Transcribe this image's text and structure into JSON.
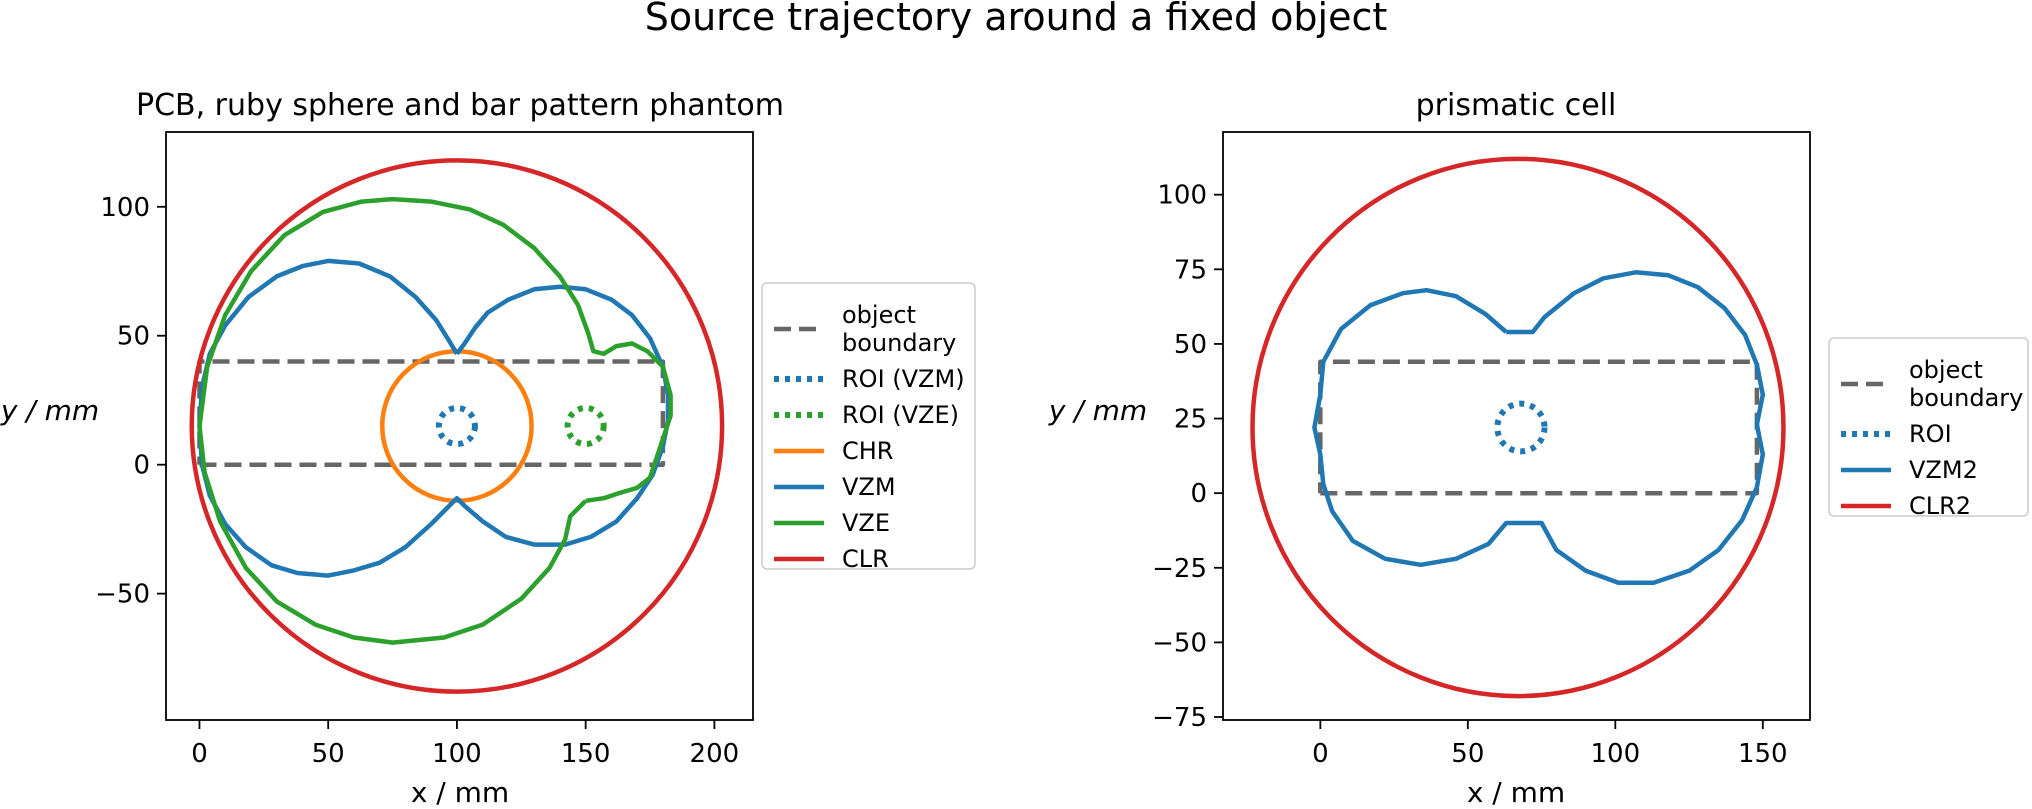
{
  "figure": {
    "title": "Source trajectory around a fixed object"
  },
  "chart_data": [
    {
      "type": "line",
      "title": "PCB, ruby sphere and bar pattern phantom",
      "xlabel": "x / mm",
      "ylabel": "y / mm",
      "xlim": [
        -13,
        215
      ],
      "ylim": [
        -99,
        129
      ],
      "xticks": [
        0,
        50,
        100,
        150,
        200
      ],
      "yticks": [
        -50,
        0,
        50,
        100
      ],
      "grid": false,
      "legend_position": "right, outside axes",
      "series": [
        {
          "name": "object boundary",
          "color": "#666666",
          "style": "dashed",
          "points": [
            [
              0,
              0
            ],
            [
              180,
              0
            ],
            [
              180,
              40
            ],
            [
              0,
              40
            ],
            [
              0,
              0
            ]
          ]
        },
        {
          "name": "ROI (VZM)",
          "color": "#1f77b4",
          "style": "dotted",
          "shape": "circle",
          "center": [
            100,
            15
          ],
          "radius": 7
        },
        {
          "name": "ROI (VZE)",
          "color": "#2ca02c",
          "style": "dotted",
          "shape": "circle",
          "center": [
            150,
            15
          ],
          "radius": 7
        },
        {
          "name": "CHR",
          "color": "#ff7f0e",
          "style": "solid",
          "shape": "circle",
          "center": [
            100,
            15
          ],
          "radius": 29
        },
        {
          "name": "VZM",
          "color": "#1f77b4",
          "style": "solid",
          "points": [
            [
              100,
              43
            ],
            [
              103,
              47
            ],
            [
              107,
              53
            ],
            [
              112,
              59
            ],
            [
              120,
              64
            ],
            [
              130,
              68
            ],
            [
              140,
              69
            ],
            [
              150,
              68
            ],
            [
              160,
              64
            ],
            [
              168,
              58
            ],
            [
              175,
              49
            ],
            [
              180,
              38
            ],
            [
              182,
              27
            ],
            [
              182,
              17
            ],
            [
              180,
              7
            ],
            [
              176,
              -4
            ],
            [
              170,
              -13
            ],
            [
              162,
              -22
            ],
            [
              152,
              -28
            ],
            [
              142,
              -31
            ],
            [
              130,
              -31
            ],
            [
              119,
              -28
            ],
            [
              110,
              -22
            ],
            [
              103,
              -16
            ],
            [
              100,
              -13
            ],
            [
              97,
              -16
            ],
            [
              90,
              -23
            ],
            [
              80,
              -32
            ],
            [
              70,
              -38
            ],
            [
              60,
              -41
            ],
            [
              50,
              -43
            ],
            [
              38,
              -42
            ],
            [
              28,
              -39
            ],
            [
              18,
              -32
            ],
            [
              10,
              -23
            ],
            [
              4,
              -12
            ],
            [
              1,
              0
            ],
            [
              0,
              15
            ],
            [
              1,
              30
            ],
            [
              4,
              43
            ],
            [
              10,
              54
            ],
            [
              19,
              65
            ],
            [
              30,
              73
            ],
            [
              40,
              77
            ],
            [
              50,
              79
            ],
            [
              62,
              78
            ],
            [
              74,
              73
            ],
            [
              84,
              65
            ],
            [
              92,
              56
            ],
            [
              97,
              48
            ],
            [
              100,
              43
            ]
          ]
        },
        {
          "name": "VZE",
          "color": "#2ca02c",
          "style": "solid",
          "points": [
            [
              150,
              -14
            ],
            [
              144,
              -20
            ],
            [
              142,
              -29
            ],
            [
              136,
              -40
            ],
            [
              125,
              -52
            ],
            [
              110,
              -62
            ],
            [
              95,
              -67
            ],
            [
              75,
              -69
            ],
            [
              60,
              -67
            ],
            [
              45,
              -62
            ],
            [
              30,
              -53
            ],
            [
              18,
              -40
            ],
            [
              8,
              -22
            ],
            [
              2,
              -3
            ],
            [
              0,
              15
            ],
            [
              3,
              38
            ],
            [
              10,
              58
            ],
            [
              20,
              75
            ],
            [
              33,
              89
            ],
            [
              48,
              98
            ],
            [
              63,
              102
            ],
            [
              75,
              103
            ],
            [
              90,
              102
            ],
            [
              105,
              99
            ],
            [
              118,
              93
            ],
            [
              130,
              84
            ],
            [
              140,
              73
            ],
            [
              147,
              62
            ],
            [
              151,
              51
            ],
            [
              153,
              44
            ],
            [
              157,
              43
            ],
            [
              162,
              46
            ],
            [
              168,
              47
            ],
            [
              174,
              44
            ],
            [
              180,
              38
            ],
            [
              183,
              27
            ],
            [
              183,
              19
            ],
            [
              180,
              10
            ],
            [
              175,
              -5
            ],
            [
              170,
              -9
            ],
            [
              163,
              -11
            ],
            [
              157,
              -13
            ],
            [
              150,
              -14
            ]
          ]
        },
        {
          "name": "CLR",
          "color": "#d62728",
          "style": "solid",
          "shape": "circle",
          "center": [
            100,
            15
          ],
          "radius": 103
        }
      ]
    },
    {
      "type": "line",
      "title": "prismatic cell",
      "xlabel": "x / mm",
      "ylabel": "y / mm",
      "xlim": [
        -33,
        166
      ],
      "ylim": [
        -76,
        121
      ],
      "xticks": [
        0,
        50,
        100,
        150
      ],
      "yticks": [
        -75,
        -50,
        -25,
        0,
        25,
        50,
        75,
        100
      ],
      "grid": false,
      "legend_position": "right, outside axes",
      "series": [
        {
          "name": "object boundary",
          "color": "#666666",
          "style": "dashed",
          "points": [
            [
              0,
              0
            ],
            [
              148,
              0
            ],
            [
              148,
              44
            ],
            [
              0,
              44
            ],
            [
              0,
              0
            ]
          ]
        },
        {
          "name": "ROI",
          "color": "#1f77b4",
          "style": "dotted",
          "shape": "circle",
          "center": [
            68,
            22
          ],
          "radius": 8
        },
        {
          "name": "VZM2",
          "color": "#1f77b4",
          "style": "solid",
          "points": [
            [
              63,
              54
            ],
            [
              67,
              54
            ],
            [
              72,
              54
            ],
            [
              76,
              59
            ],
            [
              86,
              67
            ],
            [
              96,
              72
            ],
            [
              107,
              74
            ],
            [
              118,
              73
            ],
            [
              128,
              69
            ],
            [
              137,
              62
            ],
            [
              144,
              53
            ],
            [
              148,
              43
            ],
            [
              150,
              33
            ],
            [
              148,
              23
            ],
            [
              150,
              13
            ],
            [
              148,
              2
            ],
            [
              143,
              -9
            ],
            [
              135,
              -19
            ],
            [
              125,
              -26
            ],
            [
              113,
              -30
            ],
            [
              101,
              -30
            ],
            [
              90,
              -26
            ],
            [
              80,
              -19
            ],
            [
              75,
              -10
            ],
            [
              69,
              -10
            ],
            [
              63,
              -10
            ],
            [
              57,
              -17
            ],
            [
              46,
              -22
            ],
            [
              34,
              -24
            ],
            [
              22,
              -22
            ],
            [
              11,
              -16
            ],
            [
              4,
              -6
            ],
            [
              1,
              3
            ],
            [
              0,
              13
            ],
            [
              -2,
              22
            ],
            [
              0,
              33
            ],
            [
              1,
              44
            ],
            [
              7,
              55
            ],
            [
              17,
              63
            ],
            [
              28,
              67
            ],
            [
              36,
              68
            ],
            [
              46,
              66
            ],
            [
              56,
              60
            ],
            [
              63,
              54
            ]
          ]
        },
        {
          "name": "CLR2",
          "color": "#d62728",
          "style": "solid",
          "shape": "circle",
          "center": [
            67,
            22
          ],
          "radius": 90
        }
      ]
    }
  ]
}
